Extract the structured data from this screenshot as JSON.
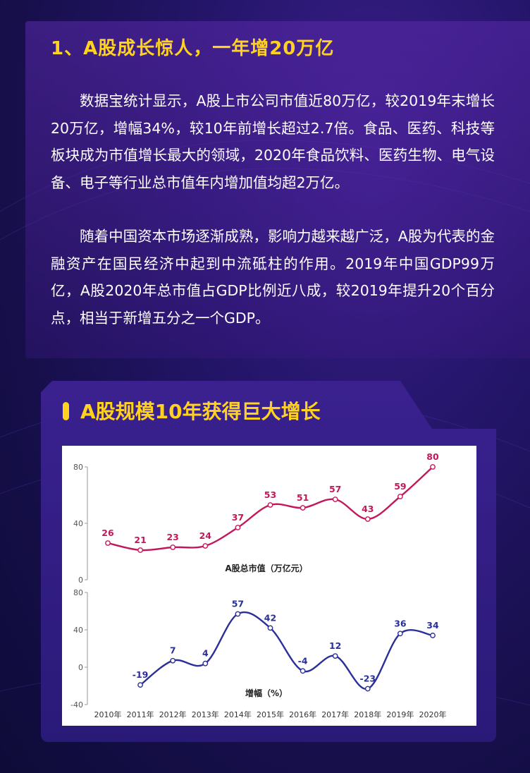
{
  "article": {
    "heading": "1、A股成长惊人，一年增20万亿",
    "paragraph1": "数据宝统计显示，A股上市公司市值近80万亿，较2019年末增长20万亿，增幅34%，较10年前增长超过2.7倍。食品、医药、科技等板块成为市值增长最大的领域，2020年食品饮料、医药生物、电气设备、电子等行业总市值年内增加值均超2万亿。",
    "paragraph2": "随着中国资本市场逐渐成熟，影响力越来越广泛，A股为代表的金融资产在国民经济中起到中流砥柱的作用。2019年中国GDP99万亿，A股2020年总市值占GDP比例近八成，较2019年提升20个百分点，相当于新增五分之一个GDP。"
  },
  "card": {
    "title": "A股规模10年获得巨大增长"
  },
  "colors": {
    "accent": "#ffd21f",
    "series_market_cap": "#c2185b",
    "series_growth": "#2a2f9a"
  },
  "chart_data": [
    {
      "type": "line",
      "x": [
        "2010年",
        "2011年",
        "2012年",
        "2013年",
        "2014年",
        "2015年",
        "2016年",
        "2017年",
        "2018年",
        "2019年",
        "2020年"
      ],
      "series": [
        {
          "name": "A股总市值（万亿元）",
          "values": [
            26,
            21,
            23,
            24,
            37,
            53,
            51,
            57,
            43,
            59,
            80
          ]
        }
      ],
      "ylim": [
        0,
        80
      ],
      "yticks": [
        "0",
        "40",
        "80"
      ],
      "grid": false
    },
    {
      "type": "line",
      "x": [
        "2010年",
        "2011年",
        "2012年",
        "2013年",
        "2014年",
        "2015年",
        "2016年",
        "2017年",
        "2018年",
        "2019年",
        "2020年"
      ],
      "series": [
        {
          "name": "增幅（%）",
          "values": [
            null,
            -19,
            7,
            4,
            57,
            42,
            -4,
            12,
            -23,
            36,
            34
          ]
        }
      ],
      "ylim": [
        -40,
        80
      ],
      "yticks": [
        "-40",
        "0",
        "40",
        "80"
      ],
      "grid": false
    }
  ]
}
